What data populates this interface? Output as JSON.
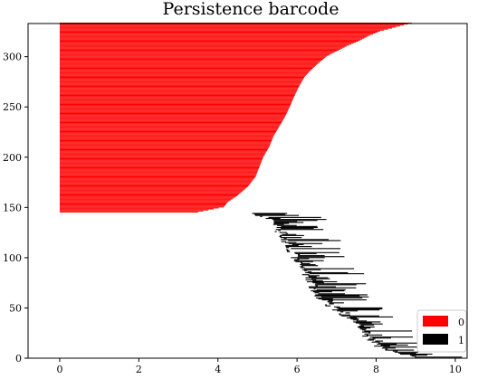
{
  "chart_data": {
    "type": "barcode",
    "title": "Persistence barcode",
    "xlabel": "",
    "ylabel": "",
    "xlim": [
      -0.8,
      10.3
    ],
    "ylim": [
      0,
      333
    ],
    "x_ticks": [
      0,
      2,
      4,
      6,
      8,
      10
    ],
    "x_tick_labels": [
      "0",
      "2",
      "4",
      "6",
      "8",
      "10"
    ],
    "y_ticks": [
      0,
      50,
      100,
      150,
      200,
      250,
      300
    ],
    "y_tick_labels": [
      "0",
      "50",
      "100",
      "150",
      "200",
      "250",
      "300"
    ],
    "grid": false,
    "legend_position": "bottom-right",
    "series": [
      {
        "name": "0",
        "color": "#ff0000",
        "index_range": [
          145,
          333
        ],
        "births": 0,
        "death_profile": {
          "index": [
            145,
            150,
            155,
            160,
            170,
            180,
            190,
            200,
            210,
            220,
            230,
            240,
            250,
            260,
            270,
            280,
            290,
            300,
            305,
            310,
            315,
            320,
            325,
            330,
            333
          ],
          "death": [
            3.5,
            4.15,
            4.25,
            4.45,
            4.75,
            4.95,
            5.05,
            5.15,
            5.3,
            5.4,
            5.55,
            5.7,
            5.82,
            5.93,
            6.05,
            6.2,
            6.45,
            6.75,
            7.0,
            7.25,
            7.55,
            7.8,
            8.1,
            8.6,
            8.9
          ]
        }
      },
      {
        "name": "1",
        "color": "#000000",
        "index_range": [
          1,
          144
        ],
        "birth_profile": {
          "index": [
            1,
            5,
            10,
            20,
            30,
            40,
            50,
            60,
            70,
            80,
            90,
            100,
            110,
            120,
            130,
            137,
            141,
            144
          ],
          "birth": [
            9.1,
            8.5,
            8.1,
            7.8,
            7.6,
            7.3,
            6.9,
            6.6,
            6.4,
            6.25,
            6.1,
            5.95,
            5.8,
            5.65,
            5.5,
            5.35,
            5.1,
            4.75
          ]
        },
        "lifetime_range": [
          0.05,
          1.4
        ]
      }
    ]
  }
}
